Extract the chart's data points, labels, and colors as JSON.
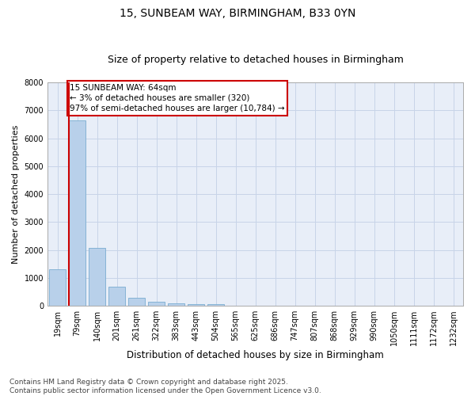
{
  "title1": "15, SUNBEAM WAY, BIRMINGHAM, B33 0YN",
  "title2": "Size of property relative to detached houses in Birmingham",
  "xlabel": "Distribution of detached houses by size in Birmingham",
  "ylabel": "Number of detached properties",
  "categories": [
    "19sqm",
    "79sqm",
    "140sqm",
    "201sqm",
    "261sqm",
    "322sqm",
    "383sqm",
    "443sqm",
    "504sqm",
    "565sqm",
    "625sqm",
    "686sqm",
    "747sqm",
    "807sqm",
    "868sqm",
    "929sqm",
    "990sqm",
    "1050sqm",
    "1111sqm",
    "1172sqm",
    "1232sqm"
  ],
  "values": [
    1320,
    6640,
    2080,
    670,
    290,
    130,
    80,
    50,
    50,
    0,
    0,
    0,
    0,
    0,
    0,
    0,
    0,
    0,
    0,
    0,
    0
  ],
  "bar_color": "#b8d0ea",
  "bar_edge_color": "#7aacd0",
  "vline_color": "#cc0000",
  "annotation_text": "15 SUNBEAM WAY: 64sqm\n← 3% of detached houses are smaller (320)\n97% of semi-detached houses are larger (10,784) →",
  "annotation_box_edge": "#cc0000",
  "ylim": [
    0,
    8000
  ],
  "yticks": [
    0,
    1000,
    2000,
    3000,
    4000,
    5000,
    6000,
    7000,
    8000
  ],
  "grid_color": "#c8d4e8",
  "bg_color": "#e8eef8",
  "footnote": "Contains HM Land Registry data © Crown copyright and database right 2025.\nContains public sector information licensed under the Open Government Licence v3.0.",
  "title1_fontsize": 10,
  "title2_fontsize": 9,
  "xlabel_fontsize": 8.5,
  "ylabel_fontsize": 8,
  "tick_fontsize": 7,
  "annot_fontsize": 7.5,
  "footnote_fontsize": 6.5
}
